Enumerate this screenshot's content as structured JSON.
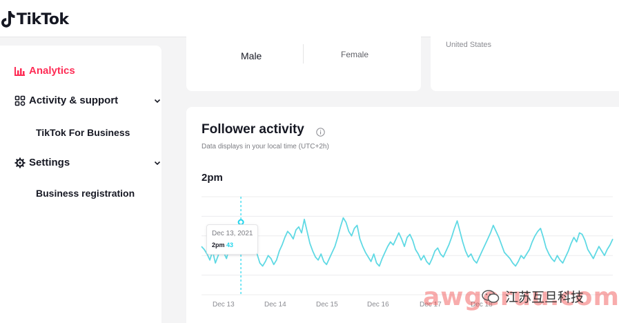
{
  "header": {
    "brand": "TikTok"
  },
  "sidebar": {
    "items": [
      {
        "label": "Analytics",
        "icon": "chart-icon",
        "active": true
      },
      {
        "label": "Activity & support",
        "icon": "grid-icon",
        "expandable": true
      },
      {
        "label": "TikTok For Business",
        "sub": true
      },
      {
        "label": "Settings",
        "icon": "gear-icon",
        "expandable": true
      },
      {
        "label": "Business registration",
        "sub": true
      }
    ]
  },
  "gender": {
    "male": "Male",
    "female": "Female"
  },
  "country": {
    "label": "United States"
  },
  "follower_activity": {
    "title": "Follower activity",
    "subtitle": "Data displays in your local time (UTC+2h)",
    "selected_time": "2pm",
    "tooltip": {
      "date": "Dec 13, 2021",
      "time": "2pm",
      "value": "43"
    }
  },
  "chart_data": {
    "type": "line",
    "x_tick_labels": [
      "Dec 13",
      "Dec 14",
      "Dec 15",
      "Dec 16",
      "Dec 17",
      "Dec 18"
    ],
    "series": [
      {
        "color": "#5fd9e4",
        "values": [
          52,
          50,
          47,
          43,
          49,
          41,
          46,
          52,
          48,
          44,
          51,
          55,
          59,
          56,
          53,
          49,
          55,
          58,
          57,
          54,
          47,
          41,
          39,
          42,
          46,
          44,
          40,
          43,
          49,
          53,
          58,
          62,
          60,
          57,
          63,
          65,
          61,
          70,
          62,
          54,
          49,
          45,
          43,
          47,
          42,
          40,
          44,
          48,
          52,
          58,
          65,
          71,
          68,
          62,
          59,
          64,
          66,
          57,
          52,
          48,
          45,
          42,
          47,
          41,
          39,
          44,
          48,
          52,
          55,
          53,
          57,
          61,
          57,
          52,
          58,
          60,
          56,
          50,
          47,
          43,
          46,
          42,
          40,
          44,
          49,
          51,
          47,
          45,
          49,
          53,
          58,
          64,
          69,
          62,
          55,
          49,
          45,
          47,
          43,
          41,
          45,
          49,
          53,
          57,
          61,
          66,
          62,
          58,
          53,
          48,
          46,
          44,
          41,
          39,
          42,
          46,
          44,
          47,
          50,
          55,
          59,
          62,
          64,
          58,
          51,
          47,
          44,
          42,
          46,
          43,
          41,
          45,
          49,
          54,
          58,
          55,
          61,
          60,
          56,
          50,
          47,
          44,
          48,
          52,
          49,
          46,
          50,
          53,
          57
        ]
      }
    ],
    "highlight_index": 3,
    "ylim": [
      20,
      85
    ],
    "grid": true
  },
  "watermark": {
    "text": "awgeruu.com",
    "badge": "江苏互旦科技"
  },
  "colors": {
    "accent": "#fe2c55",
    "line": "#5fd9e4",
    "highlight": "#20d5ec"
  }
}
